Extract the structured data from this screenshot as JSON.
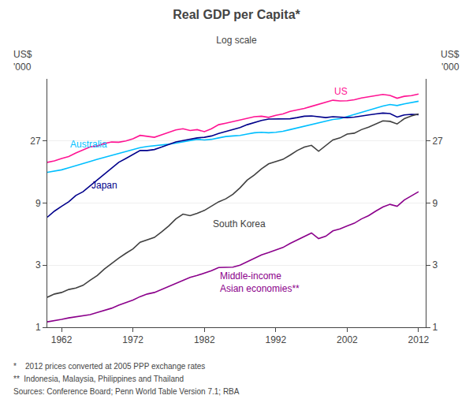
{
  "chart_data": {
    "type": "line",
    "title": "Real GDP per Capita*",
    "subtitle": "Log scale",
    "ylabel": "US$\n'000",
    "y2label": "US$\n'000",
    "footnotes": [
      "*    2012 prices converted at 2005 PPP exchange rates",
      "**  Indonesia, Malaysia, Philippines and Thailand",
      "Sources: Conference Board; Penn World Table Version 7.1; RBA"
    ],
    "log": "y",
    "grid": "y",
    "xlim": [
      1960,
      2013
    ],
    "xticks": [
      1962,
      1972,
      1982,
      1992,
      2002,
      2012
    ],
    "ylim": [
      1,
      81
    ],
    "yticks": [
      1,
      3,
      9,
      27
    ],
    "y2lim": [
      1,
      81
    ],
    "y2ticks": [
      1,
      3,
      9,
      27
    ],
    "x": [
      1960,
      1961,
      1962,
      1963,
      1964,
      1965,
      1966,
      1967,
      1968,
      1969,
      1970,
      1971,
      1972,
      1973,
      1974,
      1975,
      1976,
      1977,
      1978,
      1979,
      1980,
      1981,
      1982,
      1983,
      1984,
      1985,
      1986,
      1987,
      1988,
      1989,
      1990,
      1991,
      1992,
      1993,
      1994,
      1995,
      1996,
      1997,
      1998,
      1999,
      2000,
      2001,
      2002,
      2003,
      2004,
      2005,
      2006,
      2007,
      2008,
      2009,
      2010,
      2011,
      2012
    ],
    "series": [
      {
        "name": "US",
        "color": "#FF1493",
        "values": [
          18.5,
          19.0,
          19.8,
          20.5,
          21.8,
          23.0,
          24.3,
          24.7,
          25.8,
          26.5,
          26.4,
          27.0,
          28.1,
          29.8,
          29.4,
          28.8,
          30.1,
          31.5,
          32.8,
          33.5,
          32.5,
          33.0,
          31.8,
          33.5,
          36.0,
          37.0,
          38.0,
          39.2,
          40.5,
          41.5,
          41.8,
          41.0,
          42.5,
          43.5,
          45.5,
          46.5,
          48.0,
          49.8,
          51.5,
          53.5,
          55.5,
          54.8,
          55.0,
          56.0,
          57.8,
          59.0,
          60.5,
          61.5,
          60.5,
          57.5,
          59.5,
          60.2,
          62.0
        ]
      },
      {
        "name": "Australia",
        "color": "#00BFFF",
        "values": [
          15.5,
          15.8,
          16.2,
          16.8,
          17.5,
          18.2,
          18.8,
          19.5,
          20.2,
          21.0,
          21.8,
          22.5,
          23.2,
          24.0,
          24.5,
          24.8,
          25.2,
          25.5,
          26.0,
          26.5,
          27.0,
          27.8,
          27.5,
          27.8,
          28.5,
          29.2,
          29.5,
          29.8,
          30.5,
          31.2,
          31.5,
          31.2,
          31.5,
          32.0,
          33.0,
          34.0,
          35.0,
          36.0,
          37.0,
          38.0,
          39.5,
          40.0,
          41.5,
          43.0,
          45.0,
          46.5,
          48.0,
          50.0,
          51.5,
          50.5,
          52.0,
          53.0,
          54.5
        ]
      },
      {
        "name": "Japan",
        "color": "#00008B",
        "values": [
          7.0,
          7.8,
          8.5,
          9.2,
          10.3,
          11.0,
          12.2,
          13.5,
          15.0,
          16.5,
          18.5,
          19.8,
          21.2,
          22.8,
          22.8,
          23.2,
          24.2,
          25.2,
          26.5,
          27.2,
          27.8,
          28.5,
          28.8,
          29.5,
          30.8,
          31.8,
          32.8,
          34.2,
          36.0,
          37.5,
          38.8,
          39.8,
          40.0,
          39.8,
          40.0,
          40.8,
          41.8,
          42.0,
          41.2,
          40.8,
          41.5,
          41.0,
          40.8,
          41.2,
          42.2,
          42.8,
          43.5,
          44.2,
          43.8,
          41.2,
          42.8,
          43.2,
          43.0
        ]
      },
      {
        "name": "South Korea",
        "color": "#404040",
        "values": [
          1.7,
          1.8,
          1.85,
          1.95,
          2.0,
          2.1,
          2.3,
          2.5,
          2.8,
          3.1,
          3.4,
          3.7,
          4.0,
          4.5,
          4.7,
          4.9,
          5.4,
          6.0,
          6.8,
          7.4,
          7.2,
          7.5,
          7.9,
          8.5,
          9.2,
          9.7,
          10.5,
          11.8,
          13.5,
          14.8,
          16.5,
          18.0,
          18.8,
          19.5,
          21.0,
          22.8,
          24.2,
          25.0,
          22.5,
          25.0,
          27.5,
          28.5,
          30.5,
          31.0,
          33.0,
          34.5,
          36.5,
          38.5,
          38.2,
          36.5,
          40.0,
          42.0,
          43.5
        ]
      },
      {
        "name": "Middle-income\nAsian economies**",
        "color": "#8B008B",
        "values": [
          1.1,
          1.12,
          1.15,
          1.18,
          1.2,
          1.22,
          1.25,
          1.3,
          1.35,
          1.4,
          1.48,
          1.55,
          1.62,
          1.72,
          1.8,
          1.85,
          1.95,
          2.05,
          2.18,
          2.3,
          2.42,
          2.5,
          2.6,
          2.72,
          2.88,
          2.9,
          2.9,
          3.0,
          3.2,
          3.4,
          3.6,
          3.75,
          3.9,
          4.1,
          4.4,
          4.7,
          5.0,
          5.3,
          4.8,
          5.0,
          5.5,
          5.7,
          6.0,
          6.3,
          6.8,
          7.2,
          7.8,
          8.4,
          8.8,
          8.5,
          9.5,
          10.2,
          11.0
        ]
      }
    ],
    "annotations": [
      {
        "text": "US",
        "x": 2000,
        "y": 57
      },
      {
        "text": "Australia",
        "x": 1963,
        "y": 22.5
      },
      {
        "text": "Japan",
        "x": 1966,
        "y": 10.8
      },
      {
        "text": "South Korea",
        "x": 1983,
        "y": 5.5
      },
      {
        "text": "Middle-income\nAsian economies**",
        "x": 1984,
        "y": 1.75
      }
    ]
  }
}
